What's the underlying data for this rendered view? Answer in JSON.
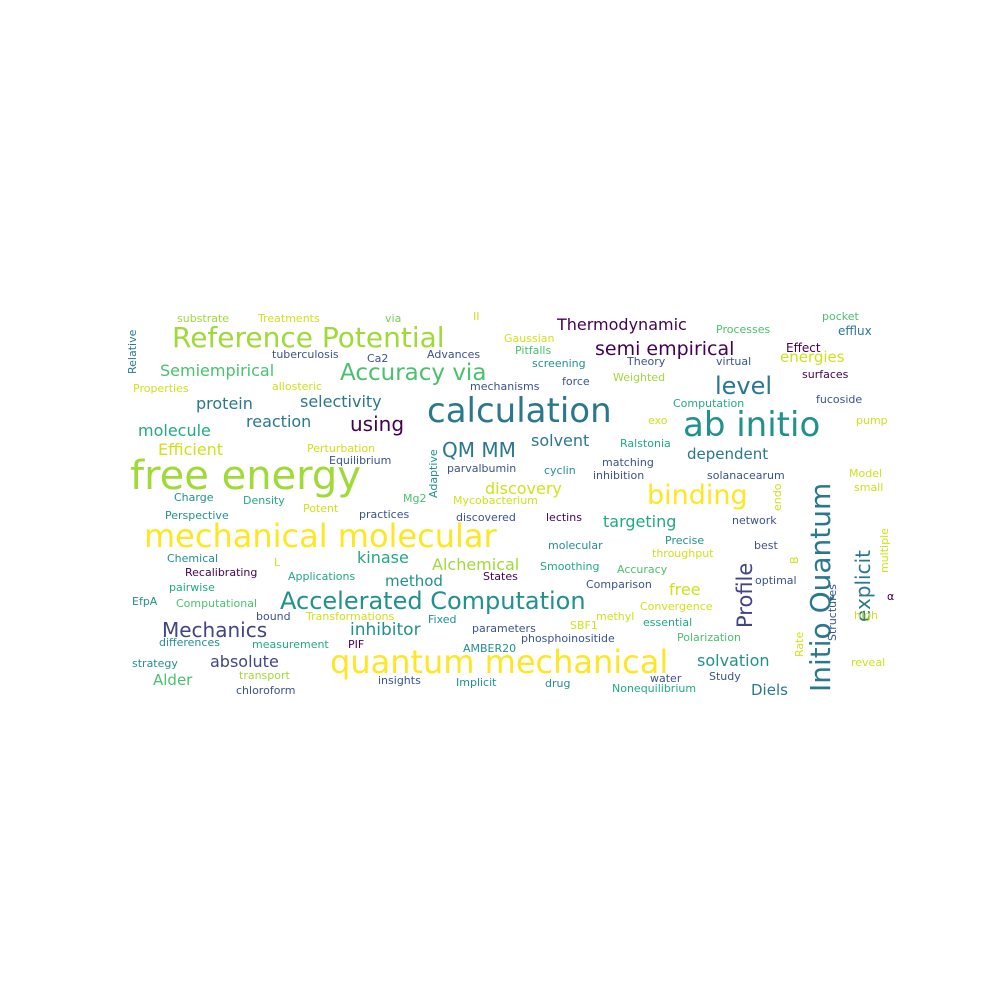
{
  "palette": [
    "#440154",
    "#3b528b",
    "#21918c",
    "#5ec962",
    "#fde725"
  ],
  "words": [
    {
      "text": "free energy",
      "color": "#a0da39"
    },
    {
      "text": "mechanical molecular",
      "color": "#fde725"
    },
    {
      "text": "quantum mechanical",
      "color": "#fde725"
    },
    {
      "text": "calculation",
      "color": "#2a788e"
    },
    {
      "text": "ab initio",
      "color": "#21918c"
    },
    {
      "text": "Reference Potential",
      "color": "#a0da39"
    },
    {
      "text": "Accelerated Computation",
      "color": "#21918c"
    },
    {
      "text": "Initio Quantum",
      "color": "#2a788e"
    },
    {
      "text": "Accuracy via",
      "color": "#4ac16d"
    },
    {
      "text": "binding",
      "color": "#fde725"
    },
    {
      "text": "Profile",
      "color": "#414487"
    },
    {
      "text": "level",
      "color": "#2a788e"
    },
    {
      "text": "Mechanics",
      "color": "#414487"
    },
    {
      "text": "QM MM",
      "color": "#2a788e"
    },
    {
      "text": "semi empirical",
      "color": "#440154"
    },
    {
      "text": "using",
      "color": "#440154"
    },
    {
      "text": "explicit",
      "color": "#2a788e"
    },
    {
      "text": "Thermodynamic",
      "color": "#440154"
    },
    {
      "text": "Semiempirical",
      "color": "#4ac16d"
    },
    {
      "text": "inhibitor",
      "color": "#21918c"
    },
    {
      "text": "kinase",
      "color": "#22a884"
    },
    {
      "text": "Alchemical",
      "color": "#a0da39"
    },
    {
      "text": "solvation",
      "color": "#21918c"
    },
    {
      "text": "absolute",
      "color": "#414487"
    },
    {
      "text": "reaction",
      "color": "#2a788e"
    },
    {
      "text": "protein",
      "color": "#2a788e"
    },
    {
      "text": "selectivity",
      "color": "#2a788e"
    },
    {
      "text": "molecule",
      "color": "#22a884"
    },
    {
      "text": "solvent",
      "color": "#2a788e"
    },
    {
      "text": "targeting",
      "color": "#22a884"
    },
    {
      "text": "Efficient",
      "color": "#d0e11c"
    },
    {
      "text": "energies",
      "color": "#d0e11c"
    },
    {
      "text": "dependent",
      "color": "#2a788e"
    },
    {
      "text": "discovery",
      "color": "#d0e11c"
    },
    {
      "text": "method",
      "color": "#21918c"
    },
    {
      "text": "free",
      "color": "#d0e11c"
    },
    {
      "text": "Alder",
      "color": "#4ac16d"
    },
    {
      "text": "Diels",
      "color": "#2a788e"
    },
    {
      "text": "substrate",
      "color": "#a0da39"
    },
    {
      "text": "Treatments",
      "color": "#d0e11c"
    },
    {
      "text": "via",
      "color": "#7ad151"
    },
    {
      "text": "II",
      "color": "#d0e11c"
    },
    {
      "text": "Processes",
      "color": "#4ac16d"
    },
    {
      "text": "pocket",
      "color": "#4ac16d"
    },
    {
      "text": "efflux",
      "color": "#2a788e"
    },
    {
      "text": "Relative",
      "color": "#2a788e"
    },
    {
      "text": "Gaussian",
      "color": "#d0e11c"
    },
    {
      "text": "Pitfalls",
      "color": "#4ac16d"
    },
    {
      "text": "tuberculosis",
      "color": "#3b528b"
    },
    {
      "text": "Ca2",
      "color": "#3b528b"
    },
    {
      "text": "Advances",
      "color": "#3b528b"
    },
    {
      "text": "screening",
      "color": "#21918c"
    },
    {
      "text": "Theory",
      "color": "#3b528b"
    },
    {
      "text": "virtual",
      "color": "#3b528b"
    },
    {
      "text": "Effect",
      "color": "#440154"
    },
    {
      "text": "surfaces",
      "color": "#440154"
    },
    {
      "text": "Properties",
      "color": "#d0e11c"
    },
    {
      "text": "allosteric",
      "color": "#d0e11c"
    },
    {
      "text": "mechanisms",
      "color": "#3b528b"
    },
    {
      "text": "force",
      "color": "#3b528b"
    },
    {
      "text": "Weighted",
      "color": "#a0da39"
    },
    {
      "text": "Computation",
      "color": "#22a884"
    },
    {
      "text": "fucoside",
      "color": "#3b528b"
    },
    {
      "text": "exo",
      "color": "#d0e11c"
    },
    {
      "text": "pump",
      "color": "#d0e11c"
    },
    {
      "text": "Ralstonia",
      "color": "#22a884"
    },
    {
      "text": "Perturbation",
      "color": "#d0e11c"
    },
    {
      "text": "Equilibrium",
      "color": "#3b528b"
    },
    {
      "text": "Adaptive",
      "color": "#21918c"
    },
    {
      "text": "parvalbumin",
      "color": "#3b528b"
    },
    {
      "text": "cyclin",
      "color": "#21918c"
    },
    {
      "text": "matching",
      "color": "#3b528b"
    },
    {
      "text": "inhibition",
      "color": "#3b528b"
    },
    {
      "text": "solanacearum",
      "color": "#3b528b"
    },
    {
      "text": "Model",
      "color": "#d0e11c"
    },
    {
      "text": "small",
      "color": "#d0e11c"
    },
    {
      "text": "endo",
      "color": "#d0e11c"
    },
    {
      "text": "Charge",
      "color": "#21918c"
    },
    {
      "text": "Density",
      "color": "#22a884"
    },
    {
      "text": "Mg2",
      "color": "#4ac16d"
    },
    {
      "text": "Mycobacterium",
      "color": "#d0e11c"
    },
    {
      "text": "Perspective",
      "color": "#21918c"
    },
    {
      "text": "Potent",
      "color": "#d0e11c"
    },
    {
      "text": "practices",
      "color": "#3b528b"
    },
    {
      "text": "discovered",
      "color": "#3b528b"
    },
    {
      "text": "lectins",
      "color": "#440154"
    },
    {
      "text": "network",
      "color": "#3b528b"
    },
    {
      "text": "Precise",
      "color": "#21918c"
    },
    {
      "text": "best",
      "color": "#3b528b"
    },
    {
      "text": "multiple",
      "color": "#d0e11c"
    },
    {
      "text": "Chemical",
      "color": "#21918c"
    },
    {
      "text": "molecular",
      "color": "#21918c"
    },
    {
      "text": "throughput",
      "color": "#d0e11c"
    },
    {
      "text": "B",
      "color": "#d0e11c"
    },
    {
      "text": "L",
      "color": "#d0e11c"
    },
    {
      "text": "Recalibrating",
      "color": "#440154"
    },
    {
      "text": "Applications",
      "color": "#22a884"
    },
    {
      "text": "Smoothing",
      "color": "#22a884"
    },
    {
      "text": "Accuracy",
      "color": "#4ac16d"
    },
    {
      "text": "States",
      "color": "#440154"
    },
    {
      "text": "pairwise",
      "color": "#22a884"
    },
    {
      "text": "Comparison",
      "color": "#3b528b"
    },
    {
      "text": "optimal",
      "color": "#3b528b"
    },
    {
      "text": "EfpA",
      "color": "#21918c"
    },
    {
      "text": "Computational",
      "color": "#4ac16d"
    },
    {
      "text": "bound",
      "color": "#3b528b"
    },
    {
      "text": "Transformations",
      "color": "#d0e11c"
    },
    {
      "text": "Fixed",
      "color": "#21918c"
    },
    {
      "text": "SBF1",
      "color": "#d0e11c"
    },
    {
      "text": "methyl",
      "color": "#d0e11c"
    },
    {
      "text": "Convergence",
      "color": "#d0e11c"
    },
    {
      "text": "essential",
      "color": "#22a884"
    },
    {
      "text": "Structures",
      "color": "#3b528b"
    },
    {
      "text": "α",
      "color": "#440154"
    },
    {
      "text": "high",
      "color": "#d0e11c"
    },
    {
      "text": "parameters",
      "color": "#3b528b"
    },
    {
      "text": "differences",
      "color": "#21918c"
    },
    {
      "text": "measurement",
      "color": "#22a884"
    },
    {
      "text": "PIF",
      "color": "#440154"
    },
    {
      "text": "phosphoinositide",
      "color": "#3b528b"
    },
    {
      "text": "Polarization",
      "color": "#4ac16d"
    },
    {
      "text": "Rate",
      "color": "#d0e11c"
    },
    {
      "text": "AMBER20",
      "color": "#21918c"
    },
    {
      "text": "strategy",
      "color": "#21918c"
    },
    {
      "text": "transport",
      "color": "#a0da39"
    },
    {
      "text": "insights",
      "color": "#3b528b"
    },
    {
      "text": "Implicit",
      "color": "#21918c"
    },
    {
      "text": "drug",
      "color": "#21918c"
    },
    {
      "text": "water",
      "color": "#3b528b"
    },
    {
      "text": "Study",
      "color": "#3b528b"
    },
    {
      "text": "reveal",
      "color": "#d0e11c"
    },
    {
      "text": "chloroform",
      "color": "#3b528b"
    },
    {
      "text": "Nonequilibrium",
      "color": "#22a884"
    }
  ]
}
